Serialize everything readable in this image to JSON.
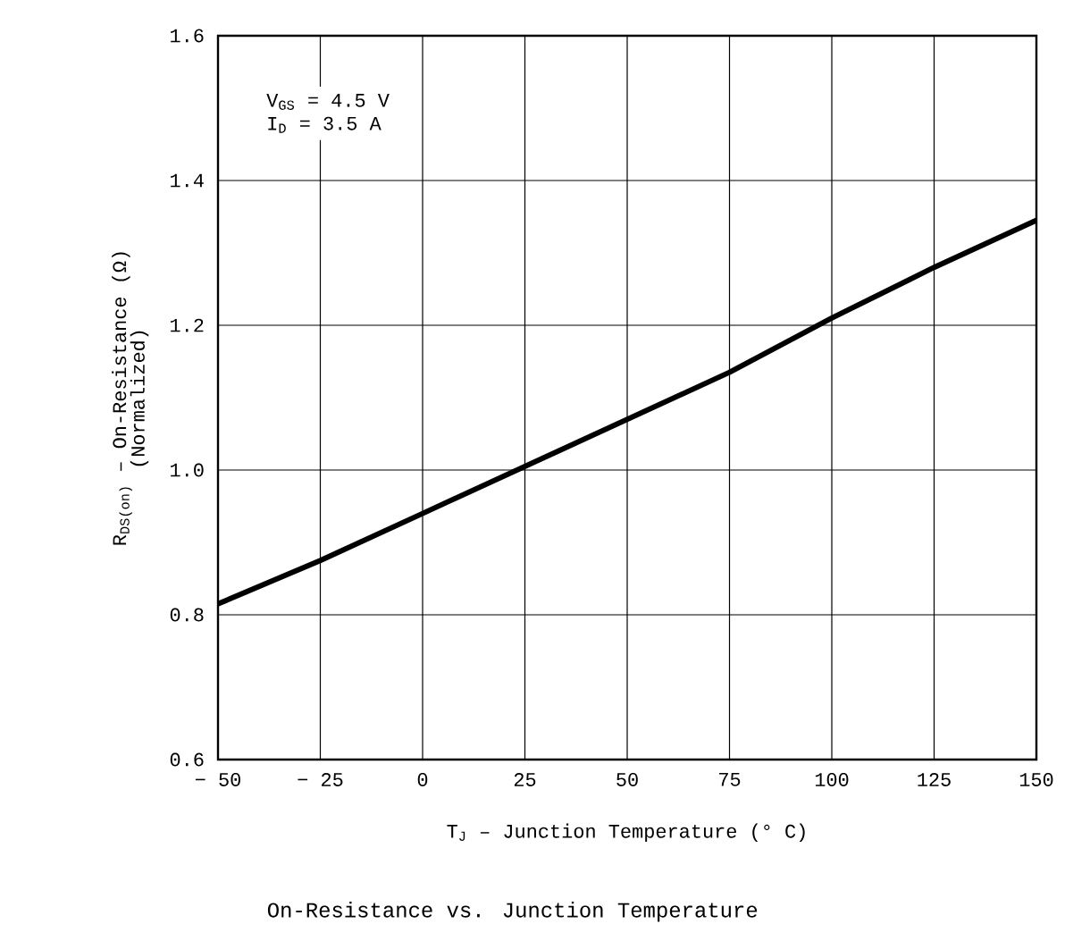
{
  "chart_data": {
    "type": "line",
    "title": "On-Resistance vs. Junction Temperature",
    "xlabel": "T$_{J}$ – Junction Temperature (° C)",
    "ylabel": "R$_{DS(on)}$ – On-Resistance (Ω)",
    "annotations": [
      "(Normalized)",
      "V$_{GS}$ = 4.5 V",
      "I$_{D}$ = 3.5 A"
    ],
    "x": [
      -50,
      -25,
      0,
      25,
      50,
      75,
      100,
      125,
      150
    ],
    "series": [
      {
        "color": "#000000",
        "values": [
          0.815,
          0.875,
          0.94,
          1.005,
          1.07,
          1.135,
          1.21,
          1.28,
          1.345
        ]
      }
    ],
    "xlim": [
      -50,
      150
    ],
    "xticks": [
      {
        "value": -50,
        "label": "− 50"
      },
      {
        "value": -25,
        "label": "− 25"
      },
      0,
      25,
      50,
      75,
      100,
      125,
      150
    ],
    "ylim": [
      0.6,
      1.6
    ],
    "yticks": [
      {
        "value": 0.6,
        "label": "0.6"
      },
      {
        "value": 0.8,
        "label": "0.8"
      },
      {
        "value": 1.0,
        "label": "1.0"
      },
      {
        "value": 1.2,
        "label": "1.2"
      },
      {
        "value": 1.4,
        "label": "1.4"
      },
      {
        "value": 1.6,
        "label": "1.6"
      }
    ],
    "grid": true,
    "marker": "none",
    "line_style": "solid"
  }
}
